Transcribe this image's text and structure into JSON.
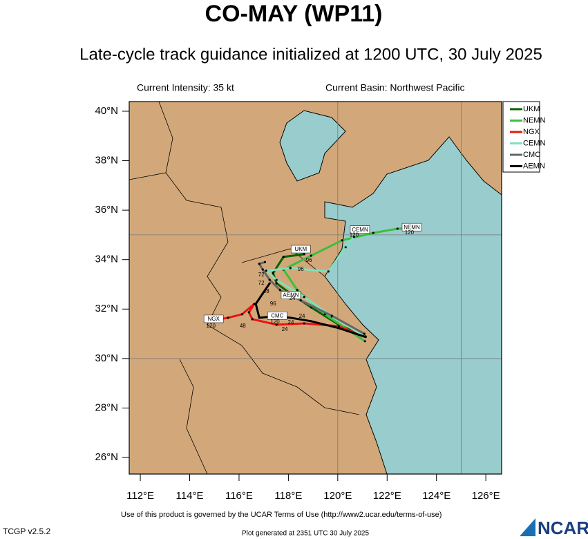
{
  "header": {
    "title": "CO-MAY (WP11)",
    "subtitle": "Late-cycle track guidance initialized at 1200 UTC, 30 July 2025"
  },
  "chart_data": {
    "type": "track-map",
    "info_left": "Current Intensity: 35 kt",
    "info_right": "Current Basin: Northwest Pacific",
    "xlim": [
      111.55,
      126.64
    ],
    "ylim": [
      25.33,
      40.39
    ],
    "xticks": [
      {
        "value": 112,
        "label": "112°E"
      },
      {
        "value": 114,
        "label": "114°E"
      },
      {
        "value": 116,
        "label": "116°E"
      },
      {
        "value": 118,
        "label": "118°E"
      },
      {
        "value": 120,
        "label": "120°E"
      },
      {
        "value": 122,
        "label": "122°E"
      },
      {
        "value": 124,
        "label": "124°E"
      },
      {
        "value": 126,
        "label": "126°E"
      }
    ],
    "yticks": [
      {
        "value": 26,
        "label": "26°N"
      },
      {
        "value": 28,
        "label": "28°N"
      },
      {
        "value": 30,
        "label": "30°N"
      },
      {
        "value": 32,
        "label": "32°N"
      },
      {
        "value": 34,
        "label": "34°N"
      },
      {
        "value": 36,
        "label": "36°N"
      },
      {
        "value": 38,
        "label": "38°N"
      },
      {
        "value": 40,
        "label": "40°N"
      }
    ],
    "grid_lon": [
      120,
      125
    ],
    "grid_lat": [
      30,
      35
    ],
    "series": [
      {
        "name": "UKM",
        "color": "#006400",
        "lon": [
          121.13,
          120.04,
          118.92,
          118.08,
          117.52,
          117.38,
          117.8,
          118.64
        ],
        "lat": [
          30.89,
          31.37,
          32.07,
          32.63,
          33.04,
          33.46,
          34.11,
          34.22
        ]
      },
      {
        "name": "NEMN",
        "color": "#3cbe3c",
        "lon": [
          121.1,
          119.48,
          118.36,
          117.8,
          118.92,
          120.18,
          121.44,
          122.42,
          123.34
        ],
        "lat": [
          30.7,
          31.79,
          32.77,
          33.6,
          34.16,
          34.78,
          35.08,
          35.25,
          35.28
        ]
      },
      {
        "name": "NGX",
        "color": "#ee1111",
        "lon": [
          121.08,
          120.04,
          118.64,
          117.52,
          116.54,
          116.4,
          116.62,
          116.12,
          115.56,
          115.22
        ],
        "lat": [
          30.89,
          31.31,
          31.42,
          31.37,
          31.59,
          31.87,
          32.21,
          31.79,
          31.65,
          31.59
        ]
      },
      {
        "name": "CEMN",
        "color": "#7fe0c0",
        "lon": [
          121.1,
          119.76,
          118.64,
          117.52,
          117.1,
          118.08,
          119.62,
          120.32,
          120.66
        ],
        "lat": [
          30.89,
          31.7,
          32.49,
          33.18,
          33.55,
          33.66,
          33.52,
          34.5,
          34.92
        ]
      },
      {
        "name": "CMC",
        "color": "#666666",
        "lon": [
          121.08,
          119.76,
          118.5,
          117.66,
          117.24,
          116.96,
          116.82,
          117.05
        ],
        "lat": [
          31.0,
          31.73,
          32.35,
          32.77,
          33.18,
          33.6,
          33.83,
          33.9
        ]
      },
      {
        "name": "AEMN",
        "color": "#000000",
        "lon": [
          121.13,
          120.04,
          118.92,
          118.08,
          117.38,
          116.82,
          116.68,
          116.96,
          117.24
        ],
        "lat": [
          30.87,
          31.23,
          31.51,
          31.65,
          31.7,
          31.65,
          32.21,
          32.63,
          33.04
        ]
      }
    ],
    "tags": [
      {
        "text": "UKM",
        "lon": 118.5,
        "lat": 34.41
      },
      {
        "text": "CEMN",
        "lon": 120.9,
        "lat": 35.2
      },
      {
        "text": "NEMN",
        "lon": 123.0,
        "lat": 35.3
      },
      {
        "text": "AEMN",
        "lon": 118.1,
        "lat": 32.55
      },
      {
        "text": "CMC",
        "lon": 117.55,
        "lat": 31.72
      },
      {
        "text": "NGX",
        "lon": 114.97,
        "lat": 31.59
      }
    ],
    "hour_labels": [
      {
        "text": "120",
        "lon": 120.66,
        "lat": 34.99
      },
      {
        "text": "120",
        "lon": 122.9,
        "lat": 35.08
      },
      {
        "text": "96",
        "lon": 118.5,
        "lat": 33.6
      },
      {
        "text": "96",
        "lon": 118.83,
        "lat": 33.97
      },
      {
        "text": "72",
        "lon": 116.9,
        "lat": 33.04
      },
      {
        "text": "72",
        "lon": 116.9,
        "lat": 33.38
      },
      {
        "text": "48",
        "lon": 117.1,
        "lat": 32.71
      },
      {
        "text": "48",
        "lon": 116.15,
        "lat": 31.31
      },
      {
        "text": "96",
        "lon": 117.38,
        "lat": 32.21
      },
      {
        "text": "24",
        "lon": 117.85,
        "lat": 31.17
      },
      {
        "text": "24",
        "lon": 118.55,
        "lat": 31.7
      },
      {
        "text": "24",
        "lon": 118.16,
        "lat": 32.43
      },
      {
        "text": "120",
        "lon": 114.86,
        "lat": 31.31
      },
      {
        "text": "120",
        "lon": 117.46,
        "lat": 31.48
      },
      {
        "text": "24",
        "lon": 118.1,
        "lat": 31.45
      }
    ]
  },
  "footer": {
    "terms": "Use of this product is governed by the UCAR Terms of Use (http://www2.ucar.edu/terms-of-use)",
    "version": "TCGP v2.5.2",
    "generated": "Plot generated at 2351 UTC   30 July 2025",
    "logo": "NCAR"
  }
}
